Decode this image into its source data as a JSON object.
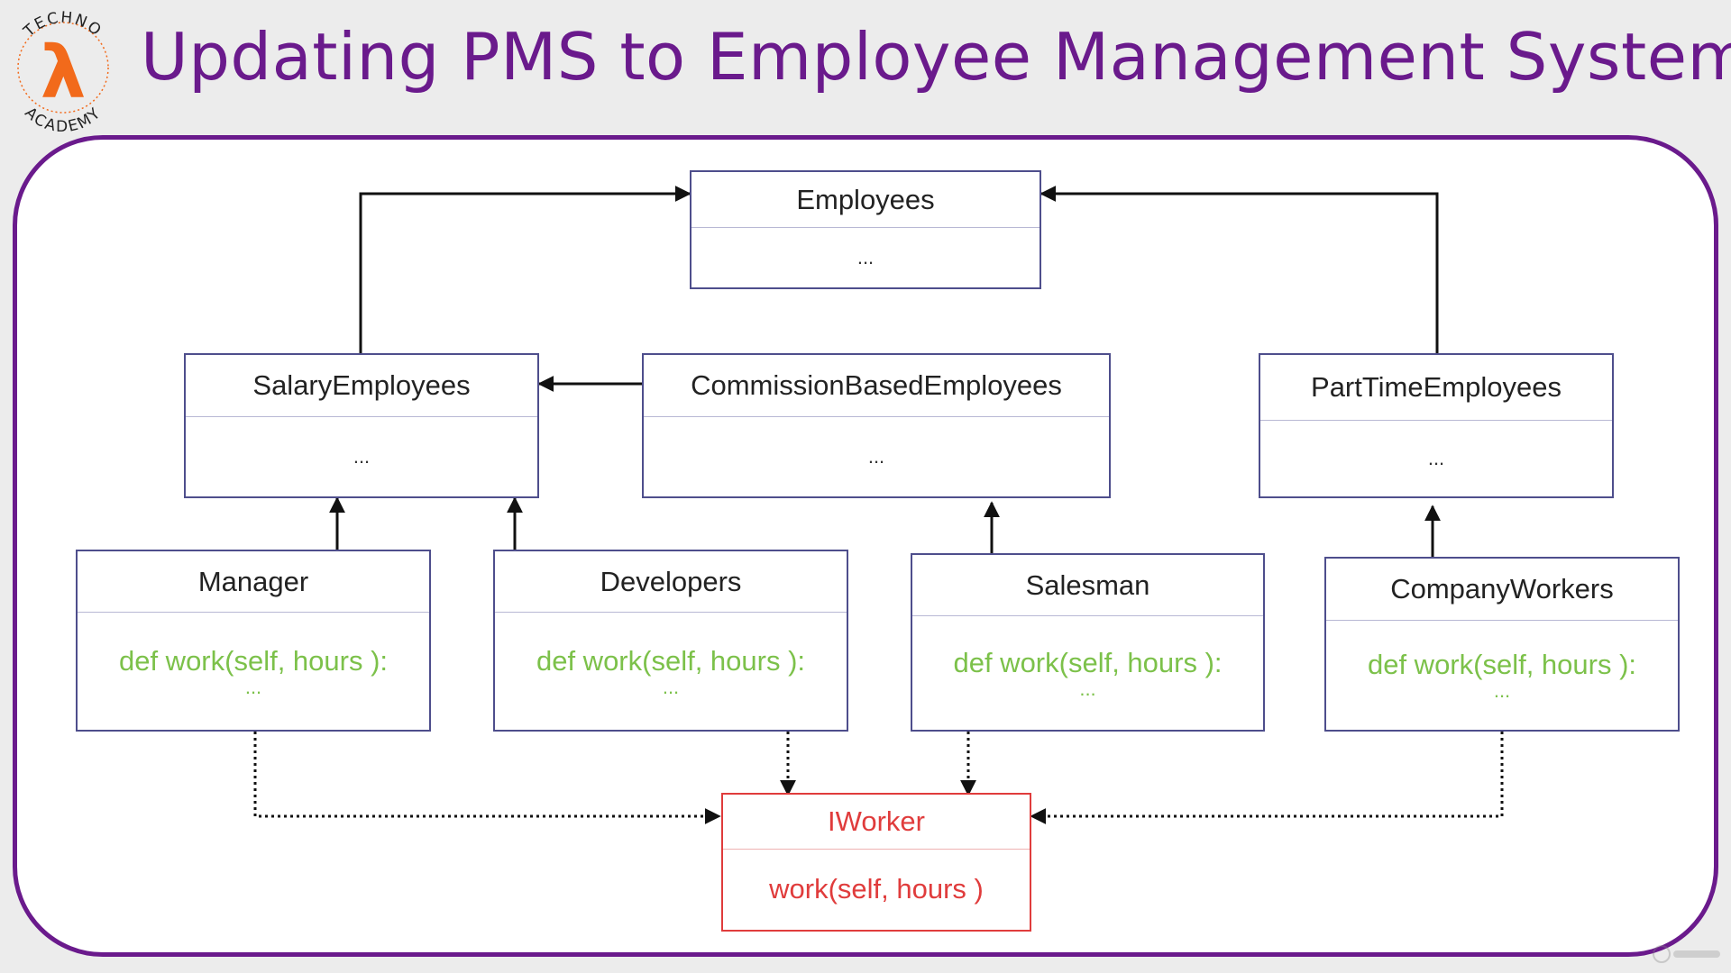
{
  "title": "Updating PMS to Employee Management System",
  "logo": {
    "top_text": "TECHNO",
    "bottom_text": "ACADEMY",
    "glyph": "λ"
  },
  "colors": {
    "title": "#6a1a8c",
    "frame": "#6a1a8c",
    "box_border": "#4e4e8c",
    "method_text": "#7cc14a",
    "interface": "#e03c3c",
    "logo_orange": "#f26a1b"
  },
  "classes": {
    "employees": {
      "name": "Employees",
      "body": "..."
    },
    "salary": {
      "name": "SalaryEmployees",
      "body": "..."
    },
    "commission": {
      "name": "CommissionBasedEmployees",
      "body": "..."
    },
    "parttime": {
      "name": "PartTimeEmployees",
      "body": "..."
    },
    "manager": {
      "name": "Manager",
      "method": "def work(self, hours ):",
      "more": "..."
    },
    "developers": {
      "name": "Developers",
      "method": "def work(self, hours ):",
      "more": "..."
    },
    "salesman": {
      "name": "Salesman",
      "method": "def work(self, hours ):",
      "more": "..."
    },
    "companyworkers": {
      "name": "CompanyWorkers",
      "method": "def work(self, hours ):",
      "more": "..."
    }
  },
  "interface": {
    "name": "IWorker",
    "method": "work(self, hours )"
  }
}
